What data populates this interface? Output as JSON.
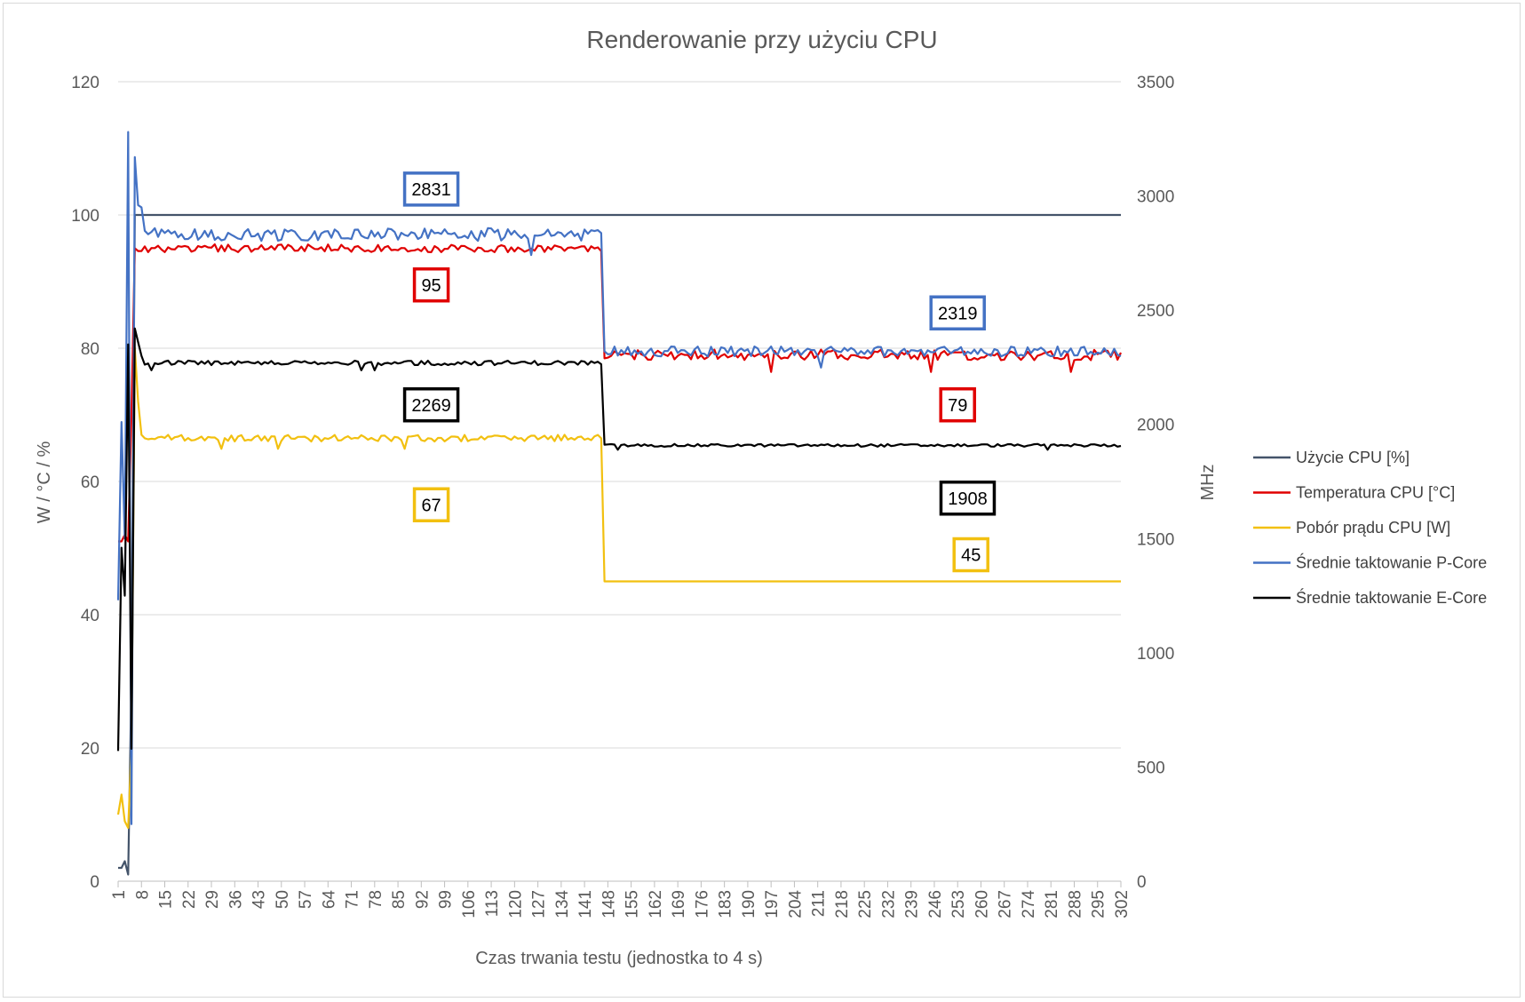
{
  "chart_data": {
    "type": "line",
    "title": "Renderowanie przy użyciu CPU",
    "xlabel": "Czas trwania testu (jednostka to 4 s)",
    "ylabel_left": "W / °C / %",
    "ylabel_right": "MHz",
    "x_range": [
      1,
      302
    ],
    "x_tick_start": 1,
    "x_tick_step": 7,
    "ylim_left": [
      0,
      120
    ],
    "ylim_right": [
      0,
      3500
    ],
    "yticks_left": [
      "0",
      "20",
      "40",
      "60",
      "80",
      "100",
      "120"
    ],
    "yticks_right": [
      "0",
      "500",
      "1000",
      "1500",
      "2000",
      "2500",
      "3000",
      "3500"
    ],
    "grid": "horizontal",
    "legend_position": "right",
    "phase_change_x": 147,
    "series": [
      {
        "name": "Użycie CPU [%]",
        "axis": "left",
        "color": "#44546a",
        "start_values": [
          2,
          2,
          3,
          1,
          30,
          100
        ],
        "phase1": {
          "level": 100,
          "noise": 0
        },
        "phase2": {
          "level": 100,
          "noise": 0
        }
      },
      {
        "name": "Temperatura CPU [°C]",
        "axis": "left",
        "color": "#e00000",
        "start_values": [
          51,
          51,
          52,
          51,
          70,
          95
        ],
        "phase1": {
          "level": 95,
          "noise": 0.6
        },
        "phase2": {
          "level": 79,
          "noise": 0.8
        }
      },
      {
        "name": "Pobór prądu CPU [W]",
        "axis": "left",
        "color": "#f2c010",
        "start_values": [
          10,
          13,
          9,
          8,
          20,
          80,
          72,
          67
        ],
        "phase1": {
          "level": 66.5,
          "noise": 0.5
        },
        "phase2": {
          "level": 45,
          "noise": 0
        }
      },
      {
        "name": "Średnie taktowanie P-Core",
        "axis": "right",
        "color": "#4472c4",
        "start_values": [
          1230,
          2010,
          1500,
          3280,
          250,
          3170,
          2960,
          2950
        ],
        "phase1": {
          "level": 2831,
          "noise": 28
        },
        "phase2": {
          "level": 2319,
          "noise": 22
        }
      },
      {
        "name": "Średnie taktowanie E-Core",
        "axis": "right",
        "color": "#000000",
        "start_values": [
          570,
          1460,
          1250,
          2350,
          580,
          2420,
          2360,
          2300
        ],
        "phase1": {
          "level": 2269,
          "noise": 10
        },
        "phase2": {
          "level": 1908,
          "noise": 6
        }
      }
    ],
    "annotations": [
      {
        "text": "2831",
        "color": "#4472c4",
        "x": 95,
        "y_axis": "right",
        "y": 3030
      },
      {
        "text": "95",
        "color": "#e00000",
        "x": 95,
        "y_axis": "left",
        "y": 89.5
      },
      {
        "text": "2269",
        "color": "#000000",
        "x": 95,
        "y_axis": "left",
        "y": 71.5
      },
      {
        "text": "67",
        "color": "#f2c010",
        "x": 95,
        "y_axis": "left",
        "y": 56.5
      },
      {
        "text": "2319",
        "color": "#4472c4",
        "x": 253,
        "y_axis": "left",
        "y": 85.3
      },
      {
        "text": "79",
        "color": "#e00000",
        "x": 253,
        "y_axis": "left",
        "y": 71.5
      },
      {
        "text": "1908",
        "color": "#000000",
        "x": 256,
        "y_axis": "left",
        "y": 57.5
      },
      {
        "text": "45",
        "color": "#f2c010",
        "x": 257,
        "y_axis": "left",
        "y": 49
      }
    ]
  }
}
